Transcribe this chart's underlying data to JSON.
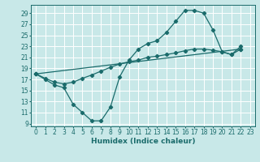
{
  "bg_color": "#c8e8e8",
  "grid_color": "#ffffff",
  "line_color": "#1a6b6b",
  "line_width": 0.9,
  "marker": "D",
  "marker_size": 2.2,
  "xlabel": "Humidex (Indice chaleur)",
  "xlabel_fontsize": 6.5,
  "tick_fontsize": 5.5,
  "xlim": [
    -0.5,
    23.5
  ],
  "ylim": [
    8.5,
    30.5
  ],
  "yticks": [
    9,
    11,
    13,
    15,
    17,
    19,
    21,
    23,
    25,
    27,
    29
  ],
  "xticks": [
    0,
    1,
    2,
    3,
    4,
    5,
    6,
    7,
    8,
    9,
    10,
    11,
    12,
    13,
    14,
    15,
    16,
    17,
    18,
    19,
    20,
    21,
    22,
    23
  ],
  "series1_x": [
    0,
    1,
    2,
    3,
    4,
    5,
    6,
    7,
    8,
    9,
    10,
    11,
    12,
    13,
    14,
    15,
    16,
    17,
    18,
    19,
    20,
    21,
    22
  ],
  "series1_y": [
    18,
    17,
    16,
    15.5,
    12.5,
    11,
    9.5,
    9.5,
    12,
    17.5,
    20.5,
    22.5,
    23.5,
    24,
    25.5,
    27.5,
    29.5,
    29.5,
    29,
    26,
    22,
    21.5,
    23
  ],
  "series2_x": [
    0,
    1,
    2,
    3,
    4,
    5,
    6,
    7,
    8,
    9,
    10,
    11,
    12,
    13,
    14,
    15,
    16,
    17,
    18,
    19,
    20,
    21,
    22
  ],
  "series2_y": [
    18,
    17.2,
    16.5,
    16.2,
    16.5,
    17.2,
    17.8,
    18.5,
    19.2,
    19.8,
    20.2,
    20.5,
    21.0,
    21.2,
    21.5,
    21.8,
    22.2,
    22.5,
    22.5,
    22.3,
    22.0,
    21.5,
    22.5
  ],
  "series3_x": [
    0,
    22
  ],
  "series3_y": [
    18,
    22.5
  ]
}
